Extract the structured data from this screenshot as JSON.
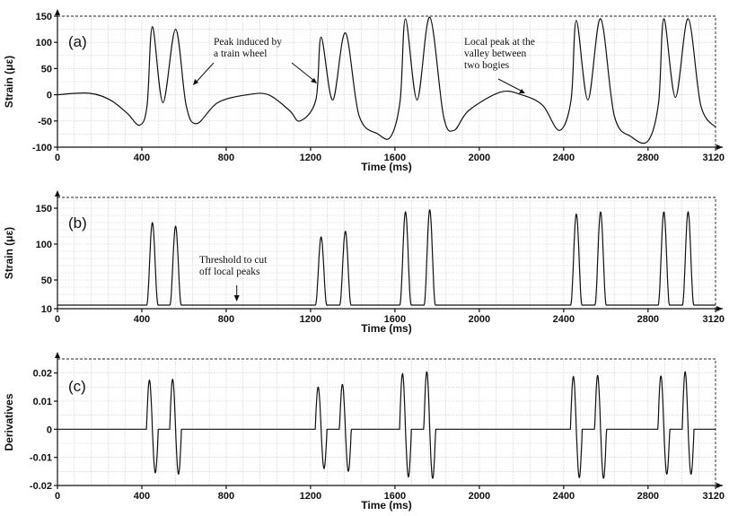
{
  "chart_data": [
    {
      "type": "line",
      "panel_label": "(a)",
      "xlabel": "Time (ms)",
      "ylabel": "Strain (με)",
      "xlim": [
        0,
        3120
      ],
      "ylim": [
        -100,
        150
      ],
      "xticks": [
        0,
        400,
        800,
        1200,
        1600,
        2000,
        2400,
        2800,
        3120
      ],
      "yticks": [
        -100,
        -50,
        0,
        50,
        100,
        150
      ],
      "grid": true,
      "baseline": 0,
      "series": [
        {
          "peaks_x": [
            450,
            560,
            1250,
            1365,
            1650,
            1765,
            2460,
            2575,
            2875,
            2990
          ],
          "peaks_y": [
            130,
            125,
            110,
            118,
            145,
            148,
            142,
            145,
            145,
            145
          ],
          "points": [
            [
              0,
              0
            ],
            [
              150,
              3
            ],
            [
              250,
              -10
            ],
            [
              330,
              -35
            ],
            [
              390,
              -58
            ],
            [
              425,
              -20
            ],
            [
              450,
              130
            ],
            [
              500,
              -15
            ],
            [
              560,
              125
            ],
            [
              610,
              -20
            ],
            [
              660,
              -55
            ],
            [
              760,
              -15
            ],
            [
              900,
              0
            ],
            [
              1000,
              0
            ],
            [
              1100,
              -30
            ],
            [
              1150,
              -50
            ],
            [
              1225,
              -10
            ],
            [
              1250,
              110
            ],
            [
              1305,
              -10
            ],
            [
              1365,
              118
            ],
            [
              1430,
              -40
            ],
            [
              1520,
              -75
            ],
            [
              1580,
              -80
            ],
            [
              1625,
              -10
            ],
            [
              1650,
              145
            ],
            [
              1705,
              -10
            ],
            [
              1765,
              148
            ],
            [
              1830,
              -40
            ],
            [
              1880,
              -68
            ],
            [
              1950,
              -30
            ],
            [
              2100,
              5
            ],
            [
              2200,
              0
            ],
            [
              2300,
              -20
            ],
            [
              2380,
              -68
            ],
            [
              2435,
              -10
            ],
            [
              2460,
              142
            ],
            [
              2515,
              -10
            ],
            [
              2575,
              145
            ],
            [
              2640,
              -40
            ],
            [
              2720,
              -80
            ],
            [
              2800,
              -88
            ],
            [
              2850,
              -15
            ],
            [
              2875,
              145
            ],
            [
              2930,
              -5
            ],
            [
              2990,
              145
            ],
            [
              3050,
              -20
            ],
            [
              3120,
              -62
            ]
          ]
        }
      ],
      "annotations": [
        {
          "lines": [
            "Peak induced by",
            "a train wheel"
          ],
          "target_x": 1080,
          "target_y": 75
        },
        {
          "lines": [
            "Local peak at the",
            "valley between",
            "two bogies"
          ],
          "target_x": 2100,
          "target_y": 8
        }
      ]
    },
    {
      "type": "line",
      "panel_label": "(b)",
      "xlabel": "Time (ms)",
      "ylabel": "Strain (με)",
      "xlim": [
        0,
        3120
      ],
      "ylim": [
        10,
        165
      ],
      "xticks": [
        0,
        400,
        800,
        1200,
        1600,
        2000,
        2400,
        2800,
        3120
      ],
      "yticks": [
        10,
        50,
        100,
        150
      ],
      "grid": true,
      "baseline": 15,
      "series": [
        {
          "peaks_x": [
            450,
            560,
            1250,
            1365,
            1650,
            1765,
            2460,
            2575,
            2875,
            2990
          ],
          "peaks_y": [
            130,
            125,
            110,
            118,
            145,
            148,
            142,
            145,
            145,
            145
          ],
          "peak_halfwidth": 27
        }
      ],
      "annotations": [
        {
          "lines": [
            "Threshold to cut",
            "off local peaks"
          ],
          "target_x": 850,
          "target_y": 17
        }
      ]
    },
    {
      "type": "line",
      "panel_label": "(c)",
      "xlabel": "Time (ms)",
      "ylabel": "Derivatives",
      "xlim": [
        0,
        3120
      ],
      "ylim": [
        -0.02,
        0.025
      ],
      "xticks": [
        0,
        400,
        800,
        1200,
        1600,
        2000,
        2400,
        2800,
        3120
      ],
      "yticks": [
        -0.02,
        -0.01,
        0,
        0.01,
        0.02
      ],
      "ytick_labels": [
        "-0.02",
        "-0.01",
        "0",
        "0.01",
        "0.02"
      ],
      "grid": true,
      "baseline": 0,
      "series": [
        {
          "peaks_x": [
            450,
            560,
            1250,
            1365,
            1650,
            1765,
            2460,
            2575,
            2875,
            2990
          ],
          "pos_amp": [
            0.0175,
            0.0178,
            0.015,
            0.016,
            0.0198,
            0.0205,
            0.0188,
            0.0192,
            0.019,
            0.0205
          ],
          "neg_amp": [
            -0.0155,
            -0.016,
            -0.014,
            -0.015,
            -0.017,
            -0.0175,
            -0.0172,
            -0.0175,
            -0.016,
            -0.016
          ]
        }
      ]
    }
  ]
}
